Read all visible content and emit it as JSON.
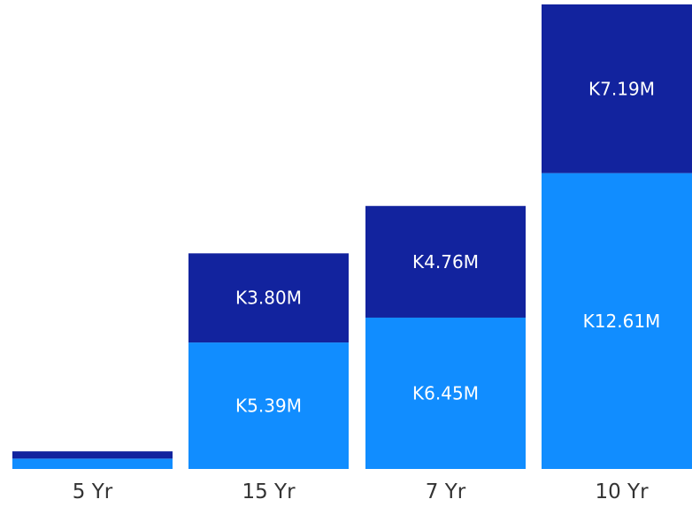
{
  "chart_data": {
    "type": "bar",
    "stacked": true,
    "categories": [
      "5 Yr",
      "15 Yr",
      "7 Yr",
      "10 Yr"
    ],
    "series": [
      {
        "color": "#118dff",
        "values": [
          0.44,
          5.39,
          6.45,
          12.61
        ],
        "labels": [
          "",
          "K5.39M",
          "K6.45M",
          "K12.61M"
        ]
      },
      {
        "color": "#12239e",
        "values": [
          0.31,
          3.8,
          4.76,
          7.19
        ],
        "labels": [
          "",
          "K3.80M",
          "K4.76M",
          "K7.19M"
        ]
      }
    ],
    "ylim": [
      0,
      19.8
    ],
    "grid": false,
    "legend": "none",
    "xlabel": "",
    "ylabel": ""
  }
}
